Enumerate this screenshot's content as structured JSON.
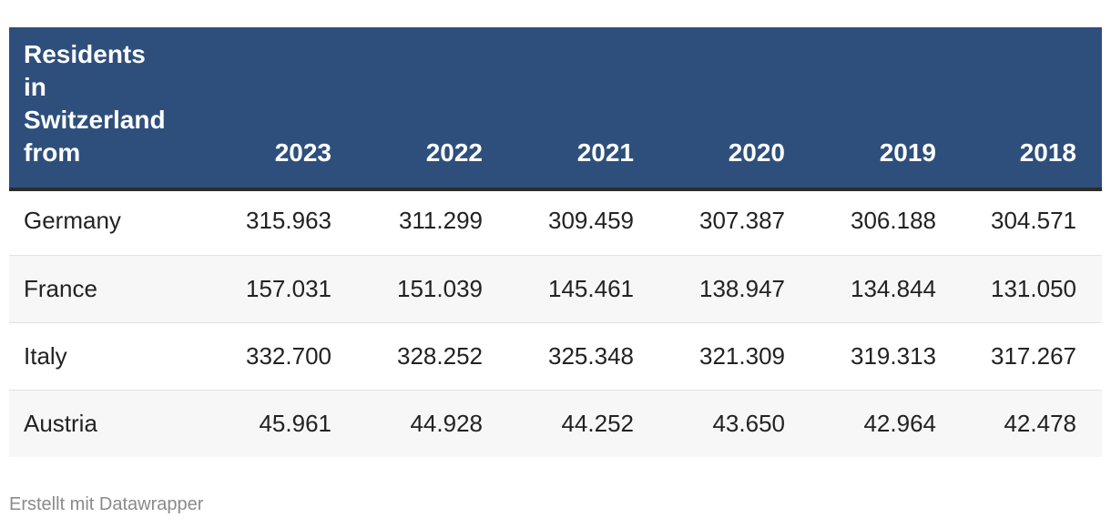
{
  "chart_data": {
    "type": "table",
    "header": {
      "first_column": "Residents in Switzerland from",
      "first_column_lines": [
        "Residents",
        "in",
        "Switzerland",
        "from"
      ],
      "years": [
        "2023",
        "2022",
        "2021",
        "2020",
        "2019",
        "2018"
      ]
    },
    "rows": [
      {
        "country": "Germany",
        "values": [
          "315.963",
          "311.299",
          "309.459",
          "307.387",
          "306.188",
          "304.571"
        ]
      },
      {
        "country": "France",
        "values": [
          "157.031",
          "151.039",
          "145.461",
          "138.947",
          "134.844",
          "131.050"
        ]
      },
      {
        "country": "Italy",
        "values": [
          "332.700",
          "328.252",
          "325.348",
          "321.309",
          "319.313",
          "317.267"
        ]
      },
      {
        "country": "Austria",
        "values": [
          "45.961",
          "44.928",
          "44.252",
          "43.650",
          "42.964",
          "42.478"
        ]
      }
    ],
    "colors": {
      "header_background": "#2e4f7b",
      "header_text": "#ffffff",
      "striped_row": "#f7f7f7"
    }
  },
  "footer": {
    "credit": "Erstellt mit Datawrapper"
  }
}
